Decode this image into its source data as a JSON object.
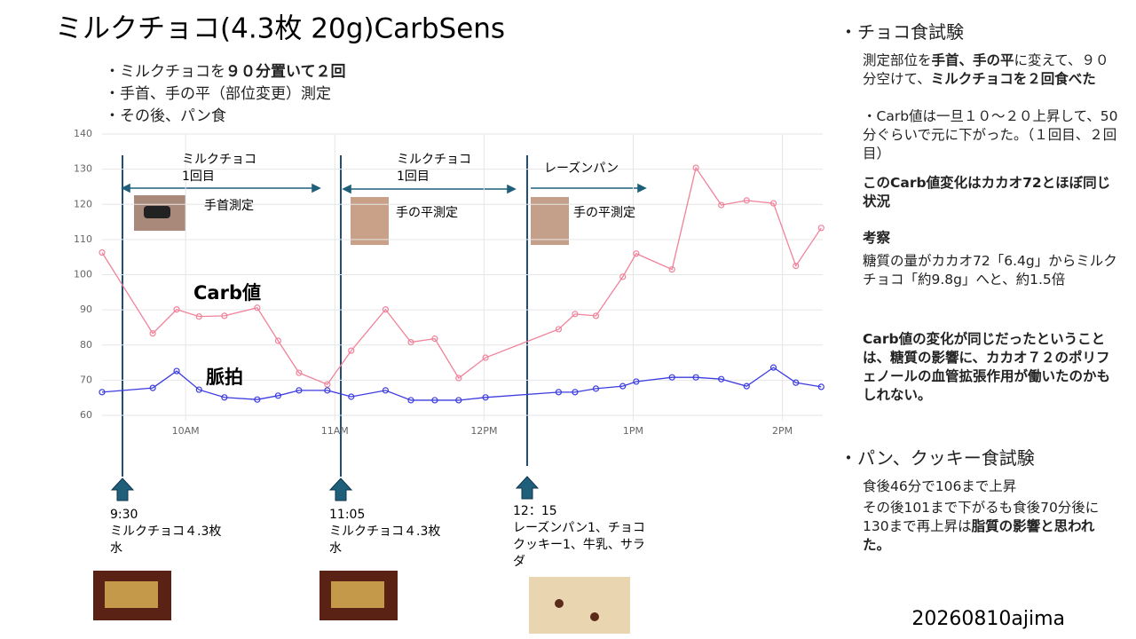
{
  "title": "ミルクチョコ(4.3枚 20g)CarbSens",
  "bullets": [
    [
      {
        "text": "・ミルクチョコを"
      },
      {
        "text": "９０分置いて２回",
        "bold": true
      }
    ],
    [
      {
        "text": "・手首、手の平（部位変更）測定"
      }
    ],
    [
      {
        "text": "・その後、パン食"
      }
    ]
  ],
  "chart_data": {
    "type": "line",
    "x": [
      9.44,
      9.78,
      9.94,
      10.09,
      10.26,
      10.48,
      10.62,
      10.76,
      10.95,
      11.11,
      11.34,
      11.51,
      11.67,
      11.83,
      12.01,
      12.5,
      12.61,
      12.75,
      12.93,
      13.02,
      13.26,
      13.42,
      13.59,
      13.76,
      13.94,
      14.09,
      14.26
    ],
    "series": [
      {
        "name": "Carb値",
        "color": "#f0829a",
        "values": [
          106.3,
          83.3,
          90.1,
          88.1,
          88.3,
          90.6,
          81.2,
          72.1,
          68.8,
          78.4,
          90.1,
          80.8,
          81.8,
          70.6,
          76.4,
          84.5,
          88.8,
          88.3,
          99.4,
          106,
          101.5,
          130.4,
          119.8,
          121.1,
          120.3,
          102.5,
          113.3
        ]
      },
      {
        "name": "脈拍",
        "color": "#3c3ce0",
        "values": [
          66.6,
          67.8,
          72.6,
          67.3,
          65.1,
          64.5,
          65.6,
          67.1,
          67.1,
          65.3,
          67.1,
          64.3,
          64.3,
          64.3,
          65.1,
          66.6,
          66.6,
          67.6,
          68.3,
          69.6,
          70.8,
          70.8,
          70.3,
          68.3,
          73.6,
          69.3,
          68.1
        ]
      }
    ],
    "xlim": [
      9.44,
      14.27
    ],
    "xticks": [
      {
        "value": 10,
        "label": "10AM"
      },
      {
        "value": 11,
        "label": "11AM"
      },
      {
        "value": 12,
        "label": "12PM"
      },
      {
        "value": 13,
        "label": "1PM"
      },
      {
        "value": 14,
        "label": "2PM"
      }
    ],
    "ylim": [
      60,
      140
    ],
    "yticks": [
      60,
      70,
      80,
      90,
      100,
      110,
      120,
      130,
      140
    ],
    "grid": true
  },
  "chart_annotations": [
    {
      "lines": [
        "ミルクチョコ",
        "1回目"
      ],
      "sub": "手首測定"
    },
    {
      "lines": [
        "ミルクチョコ",
        "1回目"
      ],
      "sub": "手の平測定"
    },
    {
      "lines": [
        "レーズンパン"
      ],
      "sub": "手の平測定"
    }
  ],
  "events": [
    [
      "9:30",
      "ミルクチョコ４.3枚",
      "水"
    ],
    [
      "11:05",
      "ミルクチョコ４.3枚",
      "水"
    ],
    [
      "12：15",
      "レーズンパン1、チョコ",
      "クッキー1、牛乳、サラ",
      "ダ"
    ]
  ],
  "right_panel": [
    {
      "heading": "・チョコ食試験",
      "paragraphs": [
        [
          {
            "text": "測定部位を"
          },
          {
            "text": "手首、手の平",
            "bold": true
          },
          {
            "text": "に変えて、９０分空けて、"
          },
          {
            "text": "ミルクチョコを２回食べた",
            "bold": true
          }
        ],
        [
          {
            "text": "・Carb値は一旦１０～２０上昇して、50分ぐらいで元に下がった。（１回目、２回目）"
          }
        ],
        [
          {
            "text": "このCarb値変化はカカオ72とほぼ同じ状況",
            "bold": true
          }
        ],
        [
          {
            "text": "考察",
            "bold": true
          }
        ],
        [
          {
            "text": "糖質の量がカカオ72「6.4g」からミルクチョコ「約9.8g」へと、約1.5倍"
          }
        ],
        [
          {
            "text": "Carb値の変化が同じだったということは、糖質の影響に、カカオ７２のポリフェノールの血管拡張作用が働いたのかもしれない。",
            "bold": true
          }
        ]
      ]
    },
    {
      "heading": "・パン、クッキー食試験",
      "paragraphs": [
        [
          {
            "text": "食後46分で106まで上昇"
          }
        ],
        [
          {
            "text": "その後101まで下がるも食後70分後に130まで再上昇は"
          },
          {
            "text": "脂質の影響と思われた。",
            "bold": true
          }
        ]
      ]
    }
  ],
  "footer": "20260810ajima"
}
